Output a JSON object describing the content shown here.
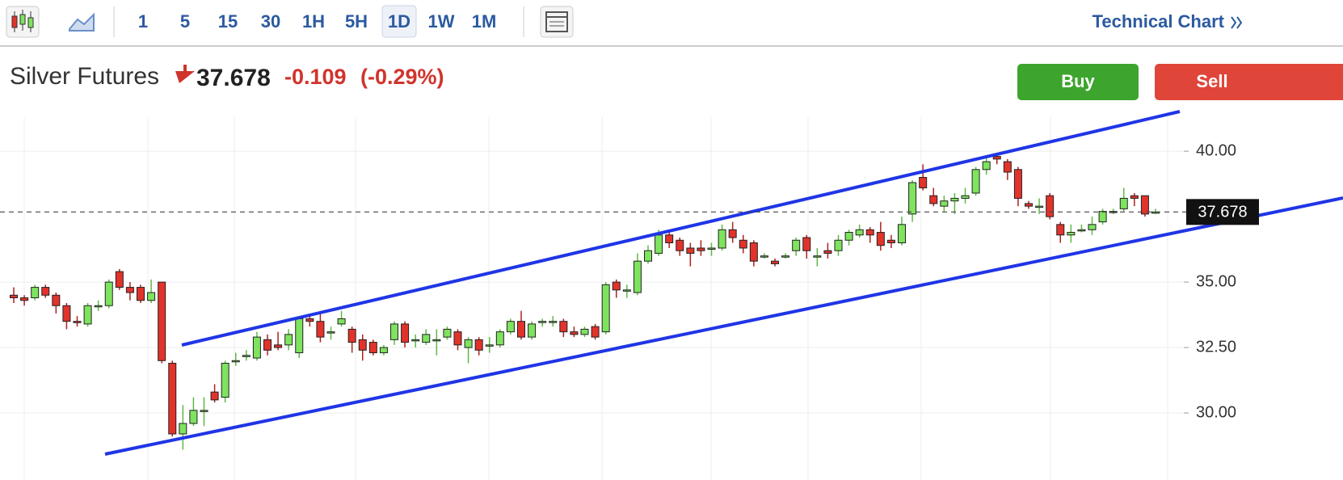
{
  "toolbar": {
    "intervals": [
      "1",
      "5",
      "15",
      "30",
      "1H",
      "5H",
      "1D",
      "1W",
      "1M"
    ],
    "selected": 6,
    "link": "Technical Chart"
  },
  "header": {
    "name": "Silver Futures",
    "change": "-0.109",
    "change_pct": "(-0.29%)",
    "buy": "Buy",
    "sell": "Sell"
  },
  "chart_data": {
    "type": "candlestick",
    "up_color": "#7ee35e",
    "down_color": "#e2332b",
    "grid": true,
    "ylim": [
      27.44,
      41.3
    ],
    "yticks": [
      {
        "value": 30,
        "label": "30.00"
      },
      {
        "value": 32.5,
        "label": "32.50"
      },
      {
        "value": 35,
        "label": "35.00"
      },
      {
        "value": 40,
        "label": "40.00"
      }
    ],
    "last_price": 37.678,
    "open": [
      34.5,
      34.4,
      34.4,
      34.8,
      34.5,
      34.1,
      33.5,
      33.4,
      34.1,
      34.1,
      35.4,
      34.8,
      34.8,
      34.3,
      35.0,
      31.9,
      29.2,
      29.6,
      30.1,
      30.8,
      30.6,
      32.0,
      32.2,
      32.1,
      32.8,
      32.6,
      32.6,
      32.3,
      33.6,
      33.5,
      33.1,
      33.4,
      33.2,
      32.8,
      32.7,
      32.3,
      32.8,
      33.4,
      32.8,
      32.7,
      32.8,
      32.9,
      33.1,
      32.5,
      32.8,
      32.6,
      32.6,
      33.1,
      33.5,
      32.9,
      33.5,
      33.5,
      33.5,
      33.1,
      33.0,
      33.3,
      33.1,
      35.0,
      34.7,
      34.6,
      35.8,
      36.1,
      36.8,
      36.6,
      36.3,
      36.3,
      36.3,
      36.3,
      37.0,
      36.6,
      36.5,
      36.0,
      35.8,
      36.0,
      36.2,
      36.7,
      36.0,
      36.2,
      36.2,
      36.6,
      36.8,
      37.0,
      36.9,
      36.6,
      36.5,
      37.6,
      39.0,
      38.3,
      37.9,
      38.1,
      38.2,
      38.4,
      39.3,
      39.8,
      39.6,
      39.3,
      38.0,
      37.9,
      38.3,
      37.2,
      36.8,
      37.0,
      37.0,
      37.3,
      37.7,
      37.8,
      38.3,
      38.3,
      37.678
    ],
    "high": [
      34.8,
      34.5,
      34.9,
      34.9,
      34.6,
      34.2,
      33.7,
      34.2,
      34.3,
      35.1,
      35.5,
      35.0,
      34.9,
      35.1,
      35.0,
      32.0,
      30.3,
      30.6,
      30.6,
      31.1,
      32.0,
      32.3,
      32.4,
      33.1,
      33.0,
      33.1,
      33.2,
      33.7,
      33.8,
      33.8,
      33.3,
      33.9,
      33.3,
      33.0,
      32.8,
      32.6,
      33.5,
      33.5,
      33.0,
      33.2,
      33.2,
      33.3,
      33.2,
      32.9,
      32.9,
      32.9,
      33.2,
      33.6,
      33.9,
      33.5,
      33.6,
      33.7,
      33.6,
      33.3,
      33.3,
      33.4,
      35.0,
      35.1,
      34.9,
      36.1,
      36.4,
      37.0,
      36.9,
      36.7,
      36.5,
      36.6,
      36.5,
      37.2,
      37.3,
      36.8,
      36.6,
      36.1,
      35.9,
      36.1,
      36.7,
      36.8,
      36.3,
      36.5,
      36.8,
      37.0,
      37.2,
      37.1,
      37.3,
      36.8,
      37.5,
      38.9,
      39.5,
      38.6,
      38.3,
      38.4,
      38.6,
      39.4,
      39.8,
      39.9,
      39.7,
      39.4,
      38.1,
      38.2,
      38.4,
      37.3,
      37.2,
      37.2,
      37.5,
      37.8,
      37.8,
      38.6,
      38.4,
      38.3,
      37.8
    ],
    "low": [
      34.2,
      34.1,
      34.3,
      34.4,
      33.8,
      33.2,
      33.3,
      33.3,
      33.9,
      34.0,
      34.7,
      34.3,
      34.2,
      34.2,
      31.9,
      29.1,
      28.6,
      29.5,
      29.5,
      30.4,
      30.4,
      31.8,
      32.0,
      32.0,
      32.2,
      32.4,
      32.4,
      32.1,
      33.3,
      32.7,
      32.8,
      33.3,
      32.3,
      32.0,
      32.2,
      32.2,
      32.6,
      32.5,
      32.5,
      32.6,
      32.2,
      32.8,
      32.4,
      31.9,
      32.2,
      32.3,
      32.5,
      33.0,
      32.8,
      32.8,
      33.3,
      33.3,
      32.9,
      32.9,
      32.9,
      32.8,
      33.0,
      34.4,
      34.4,
      34.5,
      35.7,
      36.0,
      36.3,
      36.0,
      35.6,
      36.0,
      36.0,
      36.2,
      36.5,
      36.1,
      35.6,
      35.9,
      35.6,
      35.9,
      36.0,
      35.9,
      35.6,
      35.9,
      36.0,
      36.4,
      36.7,
      36.5,
      36.2,
      36.3,
      36.4,
      37.3,
      38.5,
      37.9,
      37.7,
      37.6,
      38.0,
      38.3,
      39.1,
      39.5,
      38.9,
      37.9,
      37.8,
      37.6,
      37.4,
      36.5,
      36.5,
      36.9,
      36.8,
      37.2,
      37.6,
      37.7,
      37.9,
      37.5,
      37.6
    ],
    "close": [
      34.4,
      34.3,
      34.8,
      34.5,
      34.1,
      33.5,
      33.45,
      34.1,
      34.1,
      35.0,
      34.8,
      34.6,
      34.3,
      34.6,
      32.0,
      29.2,
      29.6,
      30.1,
      30.1,
      30.5,
      31.9,
      32.0,
      32.2,
      32.9,
      32.4,
      32.5,
      33.0,
      33.6,
      33.5,
      32.9,
      33.1,
      33.6,
      32.7,
      32.4,
      32.3,
      32.5,
      33.4,
      32.7,
      32.8,
      33.0,
      32.8,
      33.2,
      32.6,
      32.8,
      32.4,
      32.6,
      33.1,
      33.5,
      32.9,
      33.4,
      33.5,
      33.5,
      33.1,
      33.0,
      33.2,
      32.9,
      34.9,
      34.7,
      34.7,
      35.8,
      36.2,
      36.8,
      36.5,
      36.2,
      36.1,
      36.2,
      36.3,
      37.0,
      36.7,
      36.3,
      35.8,
      36.0,
      35.7,
      36.0,
      36.6,
      36.2,
      36.0,
      36.1,
      36.6,
      36.9,
      37.0,
      36.8,
      36.4,
      36.5,
      37.2,
      38.8,
      38.6,
      38.0,
      38.1,
      38.2,
      38.3,
      39.3,
      39.6,
      39.7,
      39.2,
      38.2,
      37.9,
      37.9,
      37.5,
      36.8,
      36.9,
      37.0,
      37.2,
      37.7,
      37.7,
      38.2,
      38.2,
      37.6,
      37.678
    ]
  }
}
